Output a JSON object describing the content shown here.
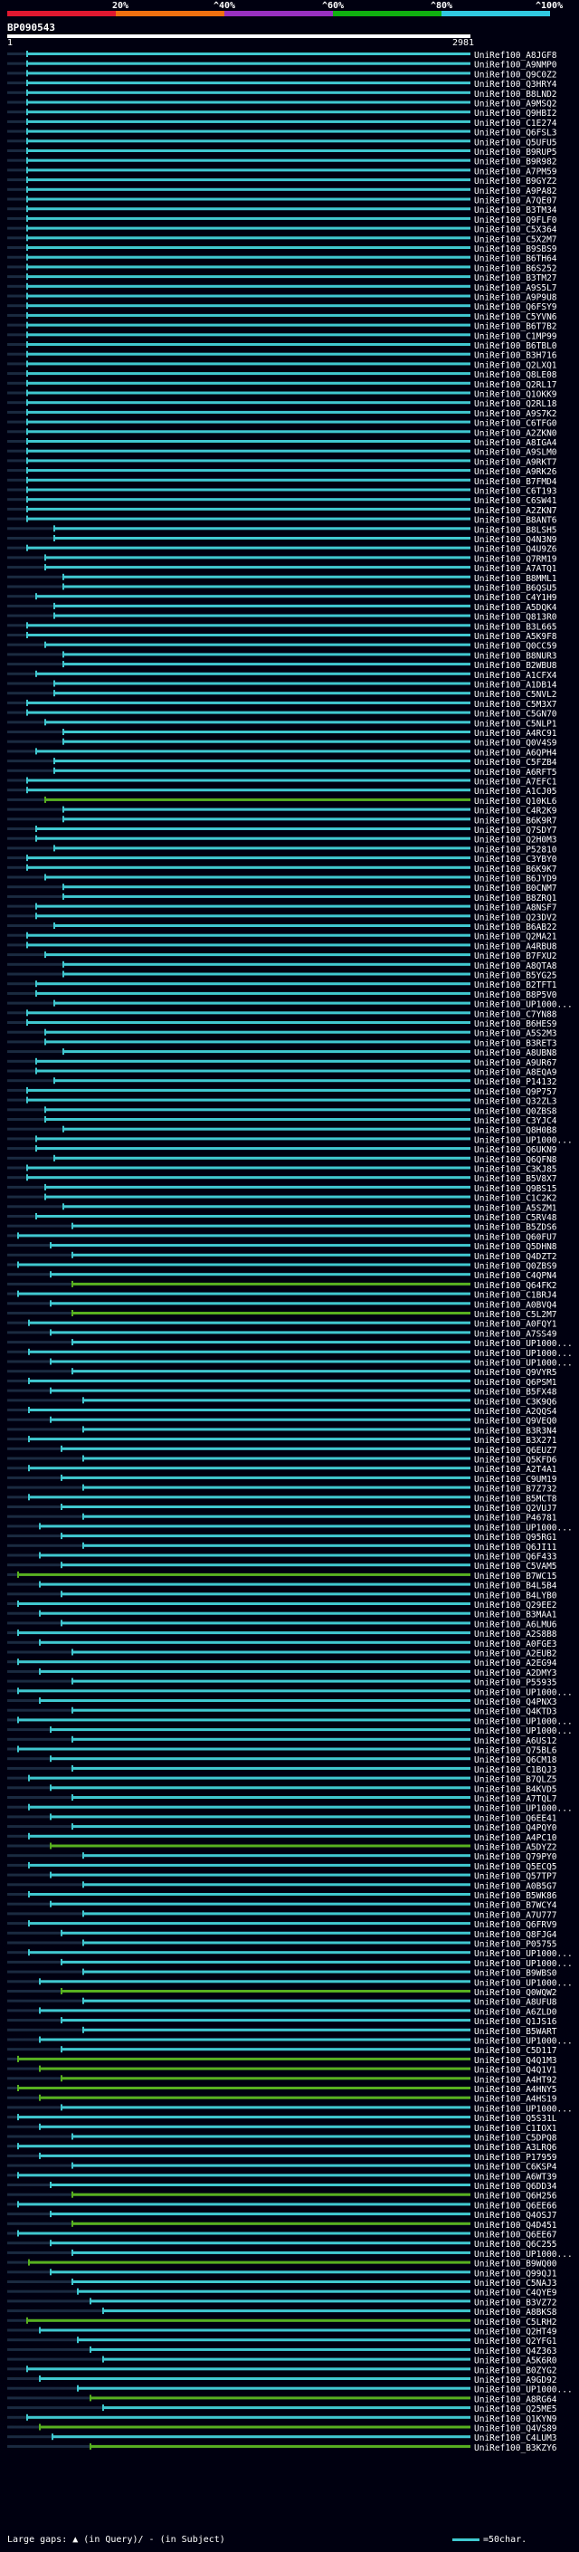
{
  "query_id": "BP090543",
  "scale_start": "1",
  "scale_end": "2981",
  "identity_scale": {
    "labels": [
      "20%",
      "^40%",
      "^60%",
      "^80%",
      "^100%"
    ],
    "colors": [
      "#e01830",
      "#f07010",
      "#9830c0",
      "#10b010",
      "#30c8e0"
    ]
  },
  "colors": {
    "background": "#000010",
    "cyan_hit": "#40c8d0",
    "green_hit": "#58b020",
    "gap": "#1a2a40"
  },
  "legend": {
    "left": "Large gaps: ▲ (in Query)/ - (in Subject)",
    "right": "=50char."
  },
  "hits": [
    {
      "name": "UniRef100_A8JGF8",
      "c": "cyan"
    },
    {
      "name": "UniRef100_A9NMP0",
      "c": "cyan"
    },
    {
      "name": "UniRef100_Q9C0Z2",
      "c": "cyan"
    },
    {
      "name": "UniRef100_Q3HRY4",
      "c": "cyan"
    },
    {
      "name": "UniRef100_B8LND2",
      "c": "cyan"
    },
    {
      "name": "UniRef100_A9MSQ2",
      "c": "cyan"
    },
    {
      "name": "UniRef100_Q9HBI2",
      "c": "cyan"
    },
    {
      "name": "UniRef100_C1E274",
      "c": "cyan"
    },
    {
      "name": "UniRef100_Q6FSL3",
      "c": "cyan"
    },
    {
      "name": "UniRef100_Q5UFU5",
      "c": "cyan"
    },
    {
      "name": "UniRef100_B9RUP5",
      "c": "cyan"
    },
    {
      "name": "UniRef100_B9R982",
      "c": "cyan"
    },
    {
      "name": "UniRef100_A7PM59",
      "c": "cyan"
    },
    {
      "name": "UniRef100_B9GYZ2",
      "c": "cyan"
    },
    {
      "name": "UniRef100_A9PA82",
      "c": "cyan"
    },
    {
      "name": "UniRef100_A7QE07",
      "c": "cyan"
    },
    {
      "name": "UniRef100_B3TM34",
      "c": "cyan"
    },
    {
      "name": "UniRef100_Q9FLF0",
      "c": "cyan"
    },
    {
      "name": "UniRef100_C5X364",
      "c": "cyan"
    },
    {
      "name": "UniRef100_C5X2M7",
      "c": "cyan"
    },
    {
      "name": "UniRef100_B9SBS9",
      "c": "cyan"
    },
    {
      "name": "UniRef100_B6TH64",
      "c": "cyan"
    },
    {
      "name": "UniRef100_B6S252",
      "c": "cyan"
    },
    {
      "name": "UniRef100_B3TM27",
      "c": "cyan"
    },
    {
      "name": "UniRef100_A9S5L7",
      "c": "cyan"
    },
    {
      "name": "UniRef100_A9P9U8",
      "c": "cyan"
    },
    {
      "name": "UniRef100_Q6FSY9",
      "c": "cyan"
    },
    {
      "name": "UniRef100_C5YVN6",
      "c": "cyan"
    },
    {
      "name": "UniRef100_B6T7B2",
      "c": "cyan"
    },
    {
      "name": "UniRef100_C1MP99",
      "c": "cyan"
    },
    {
      "name": "UniRef100_B6TBL0",
      "c": "cyan"
    },
    {
      "name": "UniRef100_B3H716",
      "c": "cyan"
    },
    {
      "name": "UniRef100_Q2LXQ1",
      "c": "cyan"
    },
    {
      "name": "UniRef100_Q8LE08",
      "c": "cyan"
    },
    {
      "name": "UniRef100_Q2RL17",
      "c": "cyan"
    },
    {
      "name": "UniRef100_Q1OKK9",
      "c": "cyan"
    },
    {
      "name": "UniRef100_Q2RL18",
      "c": "cyan"
    },
    {
      "name": "UniRef100_A9S7K2",
      "c": "cyan"
    },
    {
      "name": "UniRef100_C6TFG0",
      "c": "cyan"
    },
    {
      "name": "UniRef100_A2ZKN0",
      "c": "cyan"
    },
    {
      "name": "UniRef100_A8IGA4",
      "c": "cyan"
    },
    {
      "name": "UniRef100_A9SLM0",
      "c": "cyan"
    },
    {
      "name": "UniRef100_A9RKT7",
      "c": "cyan"
    },
    {
      "name": "UniRef100_A9RK26",
      "c": "cyan"
    },
    {
      "name": "UniRef100_B7FMD4",
      "c": "cyan"
    },
    {
      "name": "UniRef100_C6T193",
      "c": "cyan"
    },
    {
      "name": "UniRef100_C6SW41",
      "c": "cyan"
    },
    {
      "name": "UniRef100_A2ZKN7",
      "c": "cyan"
    },
    {
      "name": "UniRef100_B8ANT6",
      "c": "cyan"
    },
    {
      "name": "UniRef100_B8LSH5",
      "c": "cyan"
    },
    {
      "name": "UniRef100_Q4N3N9",
      "c": "cyan"
    },
    {
      "name": "UniRef100_Q4U9Z6",
      "c": "cyan"
    },
    {
      "name": "UniRef100_Q7RM19",
      "c": "cyan"
    },
    {
      "name": "UniRef100_A7ATQ1",
      "c": "cyan"
    },
    {
      "name": "UniRef100_B8MML1",
      "c": "cyan"
    },
    {
      "name": "UniRef100_B6QSU5",
      "c": "cyan"
    },
    {
      "name": "UniRef100_C4Y1H9",
      "c": "cyan"
    },
    {
      "name": "UniRef100_A5DQK4",
      "c": "cyan"
    },
    {
      "name": "UniRef100_Q813R0",
      "c": "cyan"
    },
    {
      "name": "UniRef100_B3L665",
      "c": "cyan"
    },
    {
      "name": "UniRef100_A5K9F8",
      "c": "cyan"
    },
    {
      "name": "UniRef100_Q0CC59",
      "c": "cyan"
    },
    {
      "name": "UniRef100_B8NUR3",
      "c": "cyan"
    },
    {
      "name": "UniRef100_B2WBU8",
      "c": "cyan"
    },
    {
      "name": "UniRef100_A1CFX4",
      "c": "cyan"
    },
    {
      "name": "UniRef100_A1DB14",
      "c": "cyan"
    },
    {
      "name": "UniRef100_C5NVL2",
      "c": "cyan"
    },
    {
      "name": "UniRef100_C5M3X7",
      "c": "cyan"
    },
    {
      "name": "UniRef100_C5GN70",
      "c": "cyan"
    },
    {
      "name": "UniRef100_C5NLP1",
      "c": "cyan"
    },
    {
      "name": "UniRef100_A4RC91",
      "c": "cyan"
    },
    {
      "name": "UniRef100_Q0V4S9",
      "c": "cyan"
    },
    {
      "name": "UniRef100_A6QPH4",
      "c": "cyan"
    },
    {
      "name": "UniRef100_C5FZB4",
      "c": "cyan"
    },
    {
      "name": "UniRef100_A6RFT5",
      "c": "cyan"
    },
    {
      "name": "UniRef100_A7EFC1",
      "c": "cyan"
    },
    {
      "name": "UniRef100_A1CJ05",
      "c": "cyan"
    },
    {
      "name": "UniRef100_Q10KL6",
      "c": "green"
    },
    {
      "name": "UniRef100_C4R2K9",
      "c": "cyan"
    },
    {
      "name": "UniRef100_B6K9R7",
      "c": "cyan"
    },
    {
      "name": "UniRef100_Q7SDY7",
      "c": "cyan"
    },
    {
      "name": "UniRef100_Q2H0M3",
      "c": "cyan"
    },
    {
      "name": "UniRef100_P52810",
      "c": "cyan"
    },
    {
      "name": "UniRef100_C3YBY0",
      "c": "cyan"
    },
    {
      "name": "UniRef100_B6K9K7",
      "c": "cyan"
    },
    {
      "name": "UniRef100_B6JYD9",
      "c": "cyan"
    },
    {
      "name": "UniRef100_B0CNM7",
      "c": "cyan"
    },
    {
      "name": "UniRef100_B8ZRQ1",
      "c": "cyan"
    },
    {
      "name": "UniRef100_A8NSF7",
      "c": "cyan"
    },
    {
      "name": "UniRef100_Q23DV2",
      "c": "cyan"
    },
    {
      "name": "UniRef100_B6AB22",
      "c": "cyan"
    },
    {
      "name": "UniRef100_Q2MA21",
      "c": "cyan"
    },
    {
      "name": "UniRef100_A4RBU8",
      "c": "cyan"
    },
    {
      "name": "UniRef100_B7FXU2",
      "c": "cyan"
    },
    {
      "name": "UniRef100_A8QTA8",
      "c": "cyan"
    },
    {
      "name": "UniRef100_B5YG25",
      "c": "cyan"
    },
    {
      "name": "UniRef100_B2TFT1",
      "c": "cyan"
    },
    {
      "name": "UniRef100_B8P5V0",
      "c": "cyan"
    },
    {
      "name": "UniRef100_UP1000...",
      "c": "cyan"
    },
    {
      "name": "UniRef100_C7YN88",
      "c": "cyan"
    },
    {
      "name": "UniRef100_B6HES9",
      "c": "cyan"
    },
    {
      "name": "UniRef100_A5S2M3",
      "c": "cyan"
    },
    {
      "name": "UniRef100_B3RET3",
      "c": "cyan"
    },
    {
      "name": "UniRef100_A8UBN8",
      "c": "cyan"
    },
    {
      "name": "UniRef100_A9UR67",
      "c": "cyan"
    },
    {
      "name": "UniRef100_A8EQA9",
      "c": "cyan"
    },
    {
      "name": "UniRef100_P14132",
      "c": "cyan"
    },
    {
      "name": "UniRef100_Q9P757",
      "c": "cyan"
    },
    {
      "name": "UniRef100_Q32ZL3",
      "c": "cyan"
    },
    {
      "name": "UniRef100_Q0ZBS8",
      "c": "cyan"
    },
    {
      "name": "UniRef100_C3YJC4",
      "c": "cyan"
    },
    {
      "name": "UniRef100_Q8H0B8",
      "c": "cyan"
    },
    {
      "name": "UniRef100_UP1000...",
      "c": "cyan"
    },
    {
      "name": "UniRef100_Q6UKN9",
      "c": "cyan"
    },
    {
      "name": "UniRef100_Q6QFN8",
      "c": "cyan"
    },
    {
      "name": "UniRef100_C3KJ85",
      "c": "cyan"
    },
    {
      "name": "UniRef100_B5V8X7",
      "c": "cyan"
    },
    {
      "name": "UniRef100_Q9BS15",
      "c": "cyan"
    },
    {
      "name": "UniRef100_C1C2K2",
      "c": "cyan"
    },
    {
      "name": "UniRef100_A5SZM1",
      "c": "cyan"
    },
    {
      "name": "UniRef100_C5RV48",
      "c": "cyan"
    },
    {
      "name": "UniRef100_B5ZDS6",
      "c": "cyan"
    },
    {
      "name": "UniRef100_Q60FU7",
      "c": "cyan"
    },
    {
      "name": "UniRef100_Q5DHN8",
      "c": "cyan"
    },
    {
      "name": "UniRef100_Q4DZT2",
      "c": "cyan"
    },
    {
      "name": "UniRef100_Q0ZBS9",
      "c": "cyan"
    },
    {
      "name": "UniRef100_C4QPN4",
      "c": "cyan"
    },
    {
      "name": "UniRef100_Q64FK2",
      "c": "green"
    },
    {
      "name": "UniRef100_C1BRJ4",
      "c": "cyan"
    },
    {
      "name": "UniRef100_A0BVQ4",
      "c": "cyan"
    },
    {
      "name": "UniRef100_C5L2M7",
      "c": "green"
    },
    {
      "name": "UniRef100_A0FQY1",
      "c": "cyan"
    },
    {
      "name": "UniRef100_A7SS49",
      "c": "cyan"
    },
    {
      "name": "UniRef100_UP1000...",
      "c": "cyan"
    },
    {
      "name": "UniRef100_UP1000...",
      "c": "cyan"
    },
    {
      "name": "UniRef100_UP1000...",
      "c": "cyan"
    },
    {
      "name": "UniRef100_Q9VYR5",
      "c": "cyan"
    },
    {
      "name": "UniRef100_Q6PSM1",
      "c": "cyan"
    },
    {
      "name": "UniRef100_B5FX48",
      "c": "cyan"
    },
    {
      "name": "UniRef100_C3K9Q6",
      "c": "cyan"
    },
    {
      "name": "UniRef100_A2QQS4",
      "c": "cyan"
    },
    {
      "name": "UniRef100_Q9VEQ0",
      "c": "cyan"
    },
    {
      "name": "UniRef100_B3R3N4",
      "c": "cyan"
    },
    {
      "name": "UniRef100_B3X271",
      "c": "cyan"
    },
    {
      "name": "UniRef100_Q6EUZ7",
      "c": "cyan"
    },
    {
      "name": "UniRef100_Q5KFD6",
      "c": "cyan"
    },
    {
      "name": "UniRef100_A2T4A1",
      "c": "cyan"
    },
    {
      "name": "UniRef100_C9UM19",
      "c": "cyan"
    },
    {
      "name": "UniRef100_B7Z732",
      "c": "cyan"
    },
    {
      "name": "UniRef100_B5MCT8",
      "c": "cyan"
    },
    {
      "name": "UniRef100_Q2VUJ7",
      "c": "cyan"
    },
    {
      "name": "UniRef100_P46781",
      "c": "cyan"
    },
    {
      "name": "UniRef100_UP1000...",
      "c": "cyan"
    },
    {
      "name": "UniRef100_Q95RG1",
      "c": "cyan"
    },
    {
      "name": "UniRef100_Q6JI11",
      "c": "cyan"
    },
    {
      "name": "UniRef100_Q6F433",
      "c": "cyan"
    },
    {
      "name": "UniRef100_C5VAM5",
      "c": "cyan"
    },
    {
      "name": "UniRef100_B7WC15",
      "c": "green"
    },
    {
      "name": "UniRef100_B4L5B4",
      "c": "cyan"
    },
    {
      "name": "UniRef100_B4LYB0",
      "c": "cyan"
    },
    {
      "name": "UniRef100_Q29EE2",
      "c": "cyan"
    },
    {
      "name": "UniRef100_B3MAA1",
      "c": "cyan"
    },
    {
      "name": "UniRef100_A6LMU6",
      "c": "cyan"
    },
    {
      "name": "UniRef100_A2S8B8",
      "c": "cyan"
    },
    {
      "name": "UniRef100_A0FGE3",
      "c": "cyan"
    },
    {
      "name": "UniRef100_A2EUB2",
      "c": "cyan"
    },
    {
      "name": "UniRef100_A2EG94",
      "c": "cyan"
    },
    {
      "name": "UniRef100_A2DMY3",
      "c": "cyan"
    },
    {
      "name": "UniRef100_P55935",
      "c": "cyan"
    },
    {
      "name": "UniRef100_UP1000...",
      "c": "cyan"
    },
    {
      "name": "UniRef100_Q4PNX3",
      "c": "cyan"
    },
    {
      "name": "UniRef100_Q4KTD3",
      "c": "cyan"
    },
    {
      "name": "UniRef100_UP1000...",
      "c": "cyan"
    },
    {
      "name": "UniRef100_UP1000...",
      "c": "cyan"
    },
    {
      "name": "UniRef100_A6US12",
      "c": "cyan"
    },
    {
      "name": "UniRef100_Q75BL6",
      "c": "cyan"
    },
    {
      "name": "UniRef100_Q6CM18",
      "c": "cyan"
    },
    {
      "name": "UniRef100_C1BQJ3",
      "c": "cyan"
    },
    {
      "name": "UniRef100_B7QLZ5",
      "c": "cyan"
    },
    {
      "name": "UniRef100_B4KVD5",
      "c": "cyan"
    },
    {
      "name": "UniRef100_A7TQL7",
      "c": "cyan"
    },
    {
      "name": "UniRef100_UP1000...",
      "c": "cyan"
    },
    {
      "name": "UniRef100_Q6EE41",
      "c": "cyan"
    },
    {
      "name": "UniRef100_Q4PQY0",
      "c": "cyan"
    },
    {
      "name": "UniRef100_A4PC10",
      "c": "cyan"
    },
    {
      "name": "UniRef100_A5DYZ2",
      "c": "green"
    },
    {
      "name": "UniRef100_Q79PY0",
      "c": "cyan"
    },
    {
      "name": "UniRef100_Q5ECQ5",
      "c": "cyan"
    },
    {
      "name": "UniRef100_Q57TP7",
      "c": "cyan"
    },
    {
      "name": "UniRef100_A0B5G7",
      "c": "cyan"
    },
    {
      "name": "UniRef100_B5WK86",
      "c": "cyan"
    },
    {
      "name": "UniRef100_B7WCY4",
      "c": "cyan"
    },
    {
      "name": "UniRef100_A7U777",
      "c": "cyan"
    },
    {
      "name": "UniRef100_Q6FRV9",
      "c": "cyan"
    },
    {
      "name": "UniRef100_Q8FJG4",
      "c": "cyan"
    },
    {
      "name": "UniRef100_P05755",
      "c": "cyan"
    },
    {
      "name": "UniRef100_UP1000...",
      "c": "cyan"
    },
    {
      "name": "UniRef100_UP1000...",
      "c": "cyan"
    },
    {
      "name": "UniRef100_B9WBS0",
      "c": "cyan"
    },
    {
      "name": "UniRef100_UP1000...",
      "c": "cyan"
    },
    {
      "name": "UniRef100_Q0WQW2",
      "c": "green"
    },
    {
      "name": "UniRef100_A8UFU8",
      "c": "cyan"
    },
    {
      "name": "UniRef100_A6ZLD0",
      "c": "cyan"
    },
    {
      "name": "UniRef100_Q1JS16",
      "c": "cyan"
    },
    {
      "name": "UniRef100_B5WART",
      "c": "cyan"
    },
    {
      "name": "UniRef100_UP1000...",
      "c": "cyan"
    },
    {
      "name": "UniRef100_C5D117",
      "c": "cyan"
    },
    {
      "name": "UniRef100_Q4Q1M3",
      "c": "green"
    },
    {
      "name": "UniRef100_Q4Q1V1",
      "c": "green"
    },
    {
      "name": "UniRef100_A4HT92",
      "c": "green"
    },
    {
      "name": "UniRef100_A4HNY5",
      "c": "green"
    },
    {
      "name": "UniRef100_A4HS19",
      "c": "green"
    },
    {
      "name": "UniRef100_UP1000...",
      "c": "cyan"
    },
    {
      "name": "UniRef100_Q5S31L",
      "c": "cyan"
    },
    {
      "name": "UniRef100_C1IOX1",
      "c": "cyan"
    },
    {
      "name": "UniRef100_C5DPQ8",
      "c": "cyan"
    },
    {
      "name": "UniRef100_A3LRQ6",
      "c": "cyan"
    },
    {
      "name": "UniRef100_P17959",
      "c": "cyan"
    },
    {
      "name": "UniRef100_C6KSP4",
      "c": "cyan"
    },
    {
      "name": "UniRef100_A6WT39",
      "c": "cyan"
    },
    {
      "name": "UniRef100_Q6DD34",
      "c": "cyan"
    },
    {
      "name": "UniRef100_Q6H256",
      "c": "green"
    },
    {
      "name": "UniRef100_Q6EE66",
      "c": "cyan"
    },
    {
      "name": "UniRef100_Q4OSJ7",
      "c": "cyan"
    },
    {
      "name": "UniRef100_Q4D451",
      "c": "green"
    },
    {
      "name": "UniRef100_Q6EE67",
      "c": "cyan"
    },
    {
      "name": "UniRef100_Q6C255",
      "c": "cyan"
    },
    {
      "name": "UniRef100_UP1000...",
      "c": "cyan"
    },
    {
      "name": "UniRef100_B9WQ00",
      "c": "green"
    },
    {
      "name": "UniRef100_Q99QJ1",
      "c": "cyan"
    },
    {
      "name": "UniRef100_C5NAJ3",
      "c": "cyan"
    },
    {
      "name": "UniRef100_C4QYE9",
      "c": "cyan"
    },
    {
      "name": "UniRef100_B3VZ72",
      "c": "cyan"
    },
    {
      "name": "UniRef100_A8BKS8",
      "c": "cyan"
    },
    {
      "name": "UniRef100_C5LRH2",
      "c": "green"
    },
    {
      "name": "UniRef100_Q2HT49",
      "c": "cyan"
    },
    {
      "name": "UniRef100_Q2YFG1",
      "c": "cyan"
    },
    {
      "name": "UniRef100_Q4Z363",
      "c": "cyan"
    },
    {
      "name": "UniRef100_A5K6R0",
      "c": "cyan"
    },
    {
      "name": "UniRef100_B0ZYG2",
      "c": "cyan"
    },
    {
      "name": "UniRef100_A9GD92",
      "c": "cyan"
    },
    {
      "name": "UniRef100_UP1000...",
      "c": "cyan"
    },
    {
      "name": "UniRef100_A8RG64",
      "c": "green"
    },
    {
      "name": "UniRef100_Q25ME5",
      "c": "cyan"
    },
    {
      "name": "UniRef100_Q1KYN9",
      "c": "cyan"
    },
    {
      "name": "UniRef100_Q4VS89",
      "c": "green"
    },
    {
      "name": "UniRef100_C4LUM3",
      "c": "cyan"
    },
    {
      "name": "UniRef100_B3KZY6",
      "c": "green"
    }
  ]
}
